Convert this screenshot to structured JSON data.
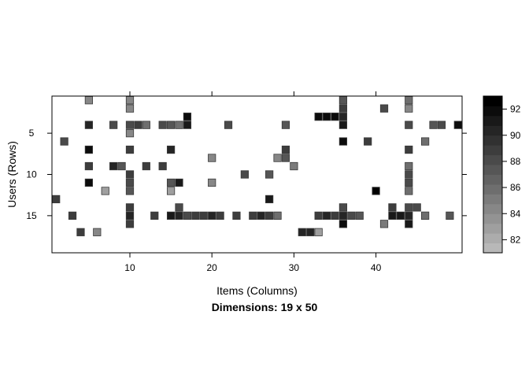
{
  "chart_data": {
    "type": "heatmap",
    "xlabel": "Items (Columns)",
    "ylabel": "Users (Rows)",
    "subtitle": "Dimensions: 19 x 50",
    "xlim": [
      0.5,
      50.5
    ],
    "ylim": [
      0.5,
      19.5
    ],
    "y_reversed": true,
    "x_ticks": [
      10,
      20,
      30,
      40
    ],
    "y_ticks": [
      5,
      10,
      15
    ],
    "colorbar": {
      "min": 81,
      "max": 93,
      "ticks": [
        82,
        84,
        86,
        88,
        90,
        92
      ],
      "steps": 16,
      "low_color": "#b8b8b8",
      "high_color": "#000000"
    },
    "cells": [
      [
        1,
        5,
        84
      ],
      [
        1,
        10,
        84
      ],
      [
        1,
        36,
        87
      ],
      [
        1,
        44,
        86
      ],
      [
        2,
        10,
        84
      ],
      [
        2,
        36,
        89
      ],
      [
        2,
        41,
        88
      ],
      [
        2,
        44,
        84
      ],
      [
        3,
        17,
        92
      ],
      [
        3,
        33,
        92
      ],
      [
        3,
        34,
        92
      ],
      [
        3,
        35,
        92
      ],
      [
        3,
        36,
        90
      ],
      [
        4,
        5,
        90
      ],
      [
        4,
        8,
        88
      ],
      [
        4,
        10,
        88
      ],
      [
        4,
        11,
        89
      ],
      [
        4,
        12,
        86
      ],
      [
        4,
        14,
        88
      ],
      [
        4,
        15,
        87
      ],
      [
        4,
        16,
        86
      ],
      [
        4,
        17,
        91
      ],
      [
        4,
        22,
        88
      ],
      [
        4,
        29,
        87
      ],
      [
        4,
        36,
        91
      ],
      [
        4,
        44,
        88
      ],
      [
        4,
        47,
        87
      ],
      [
        4,
        48,
        88
      ],
      [
        4,
        50,
        92
      ],
      [
        5,
        10,
        84
      ],
      [
        6,
        2,
        88
      ],
      [
        6,
        36,
        92
      ],
      [
        6,
        39,
        89
      ],
      [
        6,
        46,
        86
      ],
      [
        7,
        5,
        92
      ],
      [
        7,
        10,
        89
      ],
      [
        7,
        15,
        90
      ],
      [
        7,
        29,
        89
      ],
      [
        7,
        44,
        89
      ],
      [
        8,
        20,
        84
      ],
      [
        8,
        28,
        84
      ],
      [
        8,
        29,
        87
      ],
      [
        9,
        5,
        89
      ],
      [
        9,
        8,
        90
      ],
      [
        9,
        9,
        87
      ],
      [
        9,
        12,
        89
      ],
      [
        9,
        14,
        89
      ],
      [
        9,
        30,
        85
      ],
      [
        9,
        44,
        86
      ],
      [
        10,
        10,
        89
      ],
      [
        10,
        24,
        88
      ],
      [
        10,
        27,
        87
      ],
      [
        10,
        44,
        88
      ],
      [
        11,
        5,
        92
      ],
      [
        11,
        10,
        88
      ],
      [
        11,
        15,
        87
      ],
      [
        11,
        16,
        91
      ],
      [
        11,
        20,
        84
      ],
      [
        11,
        44,
        88
      ],
      [
        12,
        7,
        83
      ],
      [
        12,
        10,
        87
      ],
      [
        12,
        15,
        83
      ],
      [
        12,
        40,
        93
      ],
      [
        12,
        44,
        86
      ],
      [
        13,
        1,
        89
      ],
      [
        13,
        27,
        91
      ],
      [
        14,
        10,
        89
      ],
      [
        14,
        16,
        88
      ],
      [
        14,
        36,
        88
      ],
      [
        14,
        42,
        89
      ],
      [
        14,
        44,
        88
      ],
      [
        14,
        45,
        88
      ],
      [
        15,
        3,
        89
      ],
      [
        15,
        10,
        90
      ],
      [
        15,
        13,
        89
      ],
      [
        15,
        15,
        91
      ],
      [
        15,
        16,
        90
      ],
      [
        15,
        17,
        88
      ],
      [
        15,
        18,
        89
      ],
      [
        15,
        19,
        89
      ],
      [
        15,
        20,
        90
      ],
      [
        15,
        21,
        89
      ],
      [
        15,
        23,
        89
      ],
      [
        15,
        25,
        89
      ],
      [
        15,
        26,
        90
      ],
      [
        15,
        27,
        89
      ],
      [
        15,
        28,
        86
      ],
      [
        15,
        33,
        89
      ],
      [
        15,
        34,
        90
      ],
      [
        15,
        35,
        89
      ],
      [
        15,
        36,
        90
      ],
      [
        15,
        37,
        88
      ],
      [
        15,
        38,
        87
      ],
      [
        15,
        42,
        91
      ],
      [
        15,
        43,
        91
      ],
      [
        15,
        44,
        90
      ],
      [
        15,
        46,
        86
      ],
      [
        15,
        49,
        87
      ],
      [
        16,
        10,
        89
      ],
      [
        16,
        36,
        92
      ],
      [
        16,
        41,
        85
      ],
      [
        16,
        44,
        91
      ],
      [
        17,
        4,
        89
      ],
      [
        17,
        6,
        84
      ],
      [
        17,
        31,
        90
      ],
      [
        17,
        32,
        90
      ],
      [
        17,
        33,
        83
      ]
    ]
  }
}
